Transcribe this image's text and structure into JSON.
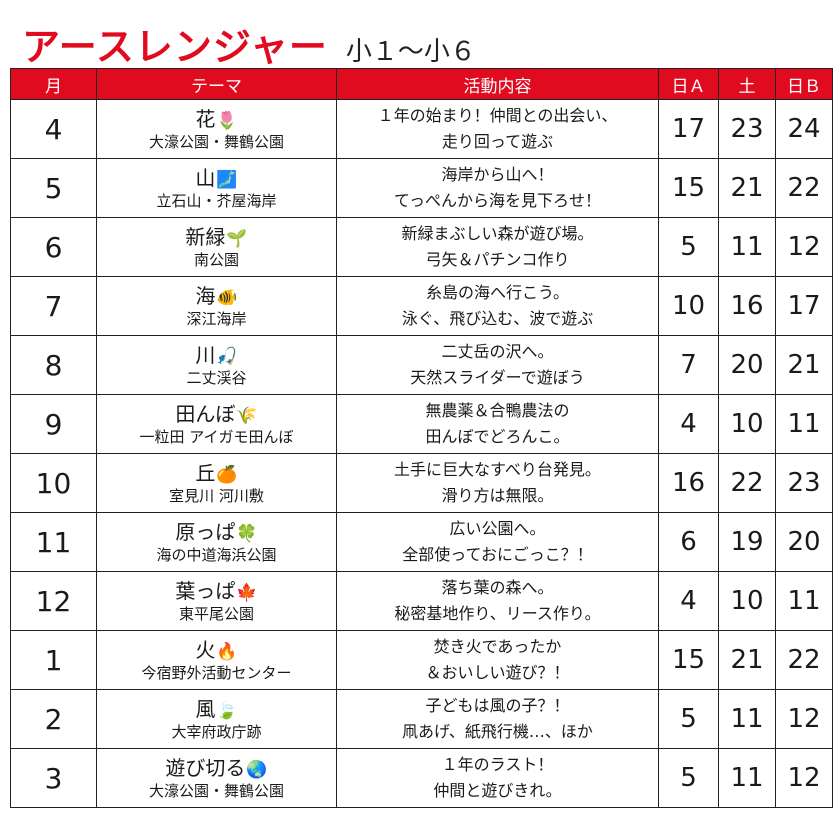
{
  "header": {
    "title": "アースレンジャー",
    "subtitle": "小１〜小６"
  },
  "colors": {
    "accent": "#e10b1f",
    "border": "#222222"
  },
  "columns": [
    "月",
    "テーマ",
    "活動内容",
    "日Ａ",
    "土",
    "日Ｂ"
  ],
  "rows": [
    {
      "month": "4",
      "theme": "花",
      "emoji": "🌷",
      "place": "大濠公園・舞鶴公園",
      "activity1": "１年の始まり！仲間との出会い、",
      "activity2": "走り回って遊ぶ",
      "a": "17",
      "sat": "23",
      "b": "24"
    },
    {
      "month": "5",
      "theme": "山",
      "emoji": "🗾",
      "place": "立石山・芥屋海岸",
      "activity1": "海岸から山へ！",
      "activity2": "てっぺんから海を見下ろせ！",
      "a": "15",
      "sat": "21",
      "b": "22"
    },
    {
      "month": "6",
      "theme": "新緑",
      "emoji": "🌱",
      "place": "南公園",
      "activity1": "新緑まぶしい森が遊び場。",
      "activity2": "弓矢＆パチンコ作り",
      "a": "5",
      "sat": "11",
      "b": "12"
    },
    {
      "month": "7",
      "theme": "海",
      "emoji": "🐠",
      "place": "深江海岸",
      "activity1": "糸島の海へ行こう。",
      "activity2": "泳ぐ、飛び込む、波で遊ぶ",
      "a": "10",
      "sat": "16",
      "b": "17"
    },
    {
      "month": "8",
      "theme": "川",
      "emoji": "🎣",
      "place": "二丈渓谷",
      "activity1": "二丈岳の沢へ。",
      "activity2": "天然スライダーで遊ぼう",
      "a": "7",
      "sat": "20",
      "b": "21"
    },
    {
      "month": "9",
      "theme": "田んぼ",
      "emoji": "🌾",
      "place": "一粒田 アイガモ田んぼ",
      "activity1": "無農薬＆合鴨農法の",
      "activity2": "田んぼでどろんこ。",
      "a": "4",
      "sat": "10",
      "b": "11"
    },
    {
      "month": "10",
      "theme": "丘",
      "emoji": "🍊",
      "place": "室見川 河川敷",
      "activity1": "土手に巨大なすべり台発見。",
      "activity2": "滑り方は無限。",
      "a": "16",
      "sat": "22",
      "b": "23"
    },
    {
      "month": "11",
      "theme": "原っぱ",
      "emoji": "🍀",
      "place": "海の中道海浜公園",
      "activity1": "広い公園へ。",
      "activity2": "全部使っておにごっこ？！",
      "a": "6",
      "sat": "19",
      "b": "20"
    },
    {
      "month": "12",
      "theme": "葉っぱ",
      "emoji": "🍁",
      "place": "東平尾公園",
      "activity1": "落ち葉の森へ。",
      "activity2": "秘密基地作り、リース作り。",
      "a": "4",
      "sat": "10",
      "b": "11"
    },
    {
      "month": "1",
      "theme": "火",
      "emoji": "🔥",
      "place": "今宿野外活動センター",
      "activity1": "焚き火であったか",
      "activity2": "＆おいしい遊び？！",
      "a": "15",
      "sat": "21",
      "b": "22"
    },
    {
      "month": "2",
      "theme": "風",
      "emoji": "🍃",
      "place": "大宰府政庁跡",
      "activity1": "子どもは風の子？！",
      "activity2": "凧あげ、紙飛行機…、ほか",
      "a": "5",
      "sat": "11",
      "b": "12"
    },
    {
      "month": "3",
      "theme": "遊び切る",
      "emoji": "🌏",
      "place": "大濠公園・舞鶴公園",
      "activity1": "１年のラスト！",
      "activity2": "仲間と遊びきれ。",
      "a": "5",
      "sat": "11",
      "b": "12"
    }
  ]
}
